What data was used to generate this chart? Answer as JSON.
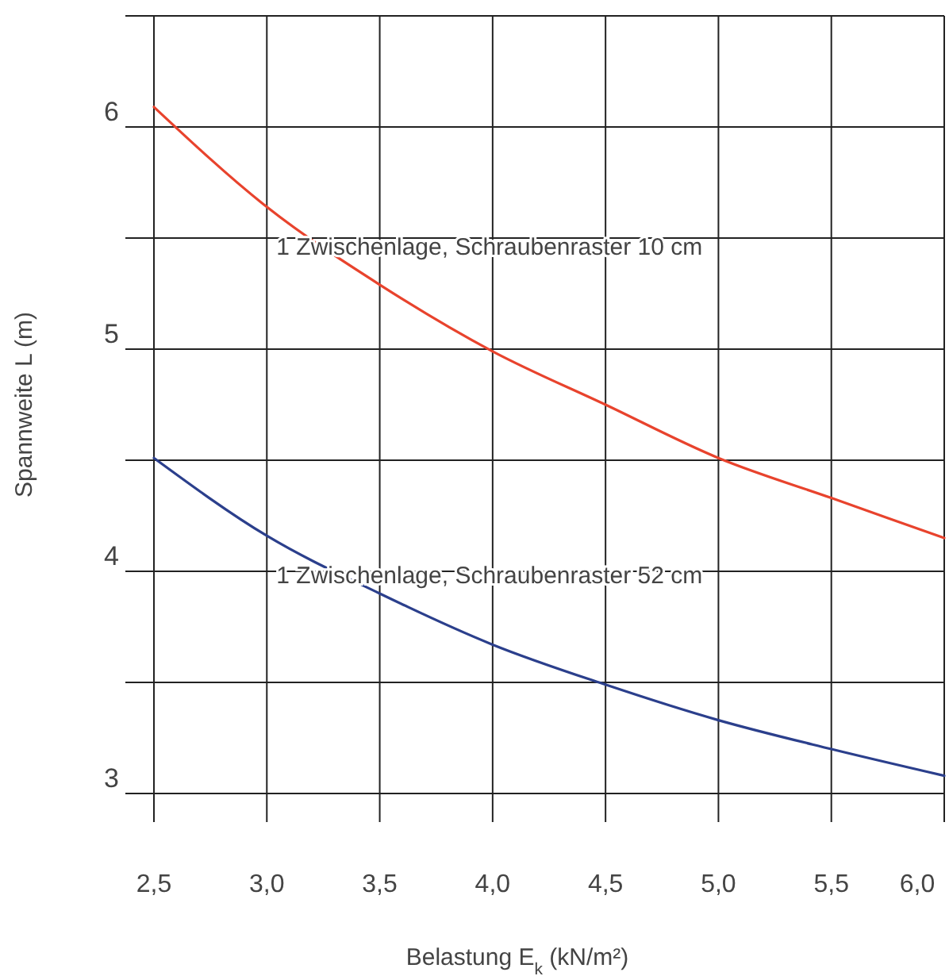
{
  "chart_data": {
    "type": "line",
    "xlabel": "Belastung E$_{k}$ (kN/m²)",
    "ylabel": "Spannweite L (m)",
    "x": [
      2.5,
      3.0,
      3.5,
      4.0,
      4.5,
      5.0,
      5.5,
      6.0
    ],
    "series": [
      {
        "name": "1 Zwischenlage, Schraubenraster 10 cm",
        "color": "#e8432d",
        "values": [
          6.09,
          5.64,
          5.29,
          4.99,
          4.75,
          4.51,
          4.33,
          4.15
        ]
      },
      {
        "name": "1 Zwischenlage, Schraubenraster 52 cm",
        "color": "#2b3f8c",
        "values": [
          4.51,
          4.16,
          3.9,
          3.67,
          3.49,
          3.33,
          3.2,
          3.08
        ]
      }
    ],
    "xlim": [
      2.5,
      6.0
    ],
    "ylim": [
      3,
      6.5
    ],
    "xticks": [
      {
        "value": 2.5,
        "label": "2,5"
      },
      {
        "value": 3.0,
        "label": "3,0"
      },
      {
        "value": 3.5,
        "label": "3,5"
      },
      {
        "value": 4.0,
        "label": "4,0"
      },
      {
        "value": 4.5,
        "label": "4,5"
      },
      {
        "value": 5.0,
        "label": "5,0"
      },
      {
        "value": 5.5,
        "label": "5,5"
      },
      {
        "value": 6.0,
        "label": "6,0"
      }
    ],
    "yticks": [
      3,
      {
        "value": 3.5,
        "label": null
      },
      4,
      {
        "value": 4.5,
        "label": null
      },
      5,
      {
        "value": 5.5,
        "label": null
      },
      6,
      {
        "value": 6.5,
        "label": null
      }
    ],
    "grid": true,
    "marker": "none",
    "line_style": "solid"
  }
}
